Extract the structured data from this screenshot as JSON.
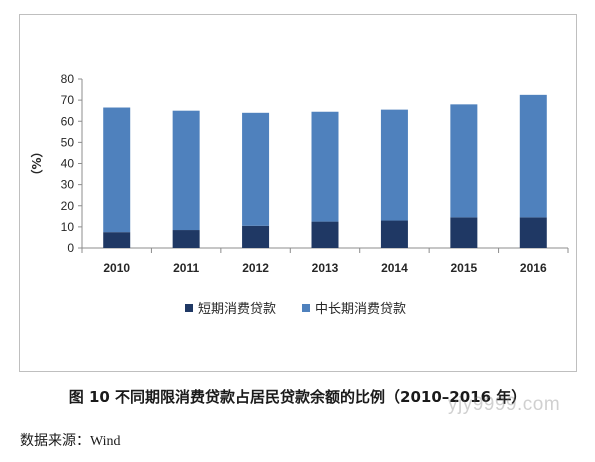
{
  "chart_data": {
    "type": "bar",
    "stacked": true,
    "categories": [
      "2010",
      "2011",
      "2012",
      "2013",
      "2014",
      "2015",
      "2016"
    ],
    "series": [
      {
        "name": "短期消费贷款",
        "color": "#1f3864",
        "values": [
          7.5,
          8.5,
          10.5,
          12.5,
          13.0,
          14.5,
          14.5
        ]
      },
      {
        "name": "中长期消费贷款",
        "color": "#4f81bd",
        "values": [
          59.0,
          56.5,
          53.5,
          52.0,
          52.5,
          53.5,
          58.0
        ]
      }
    ],
    "ylabel": "（%）",
    "ylim": [
      0,
      80
    ],
    "yticks": [
      0,
      10,
      20,
      30,
      40,
      50,
      60,
      70,
      80
    ],
    "grid": false,
    "legend_position": "bottom"
  },
  "caption": "图 10 不同期限消费贷款占居民贷款余额的比例（2010–2016 年）",
  "source": {
    "label": "数据来源：",
    "value": "Wind"
  },
  "watermark": "yjy9999.com"
}
